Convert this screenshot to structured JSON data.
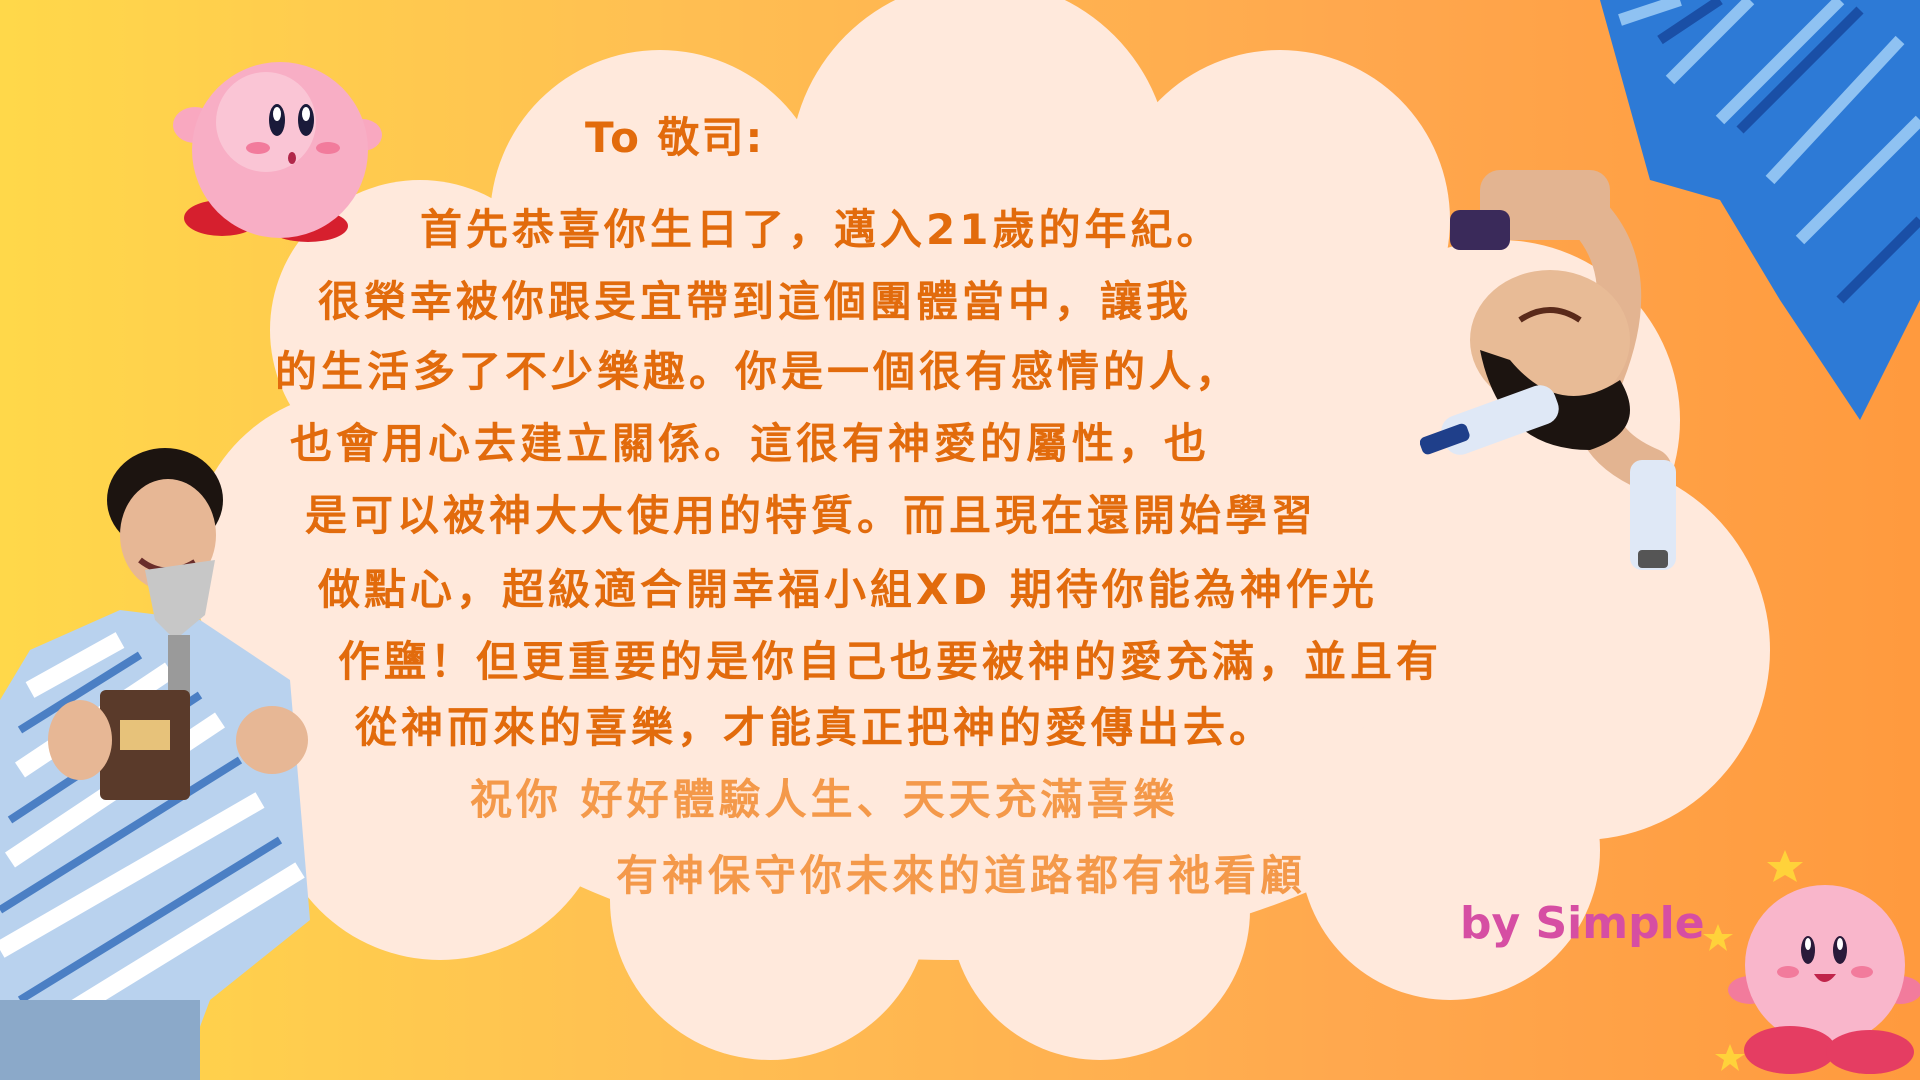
{
  "card": {
    "greeting": "To 敬司:",
    "lines": [
      "首先恭喜你生日了，邁入21歲的年紀。",
      "很榮幸被你跟旻宜帶到這個團體當中，讓我",
      "的生活多了不少樂趣。你是一個很有感情的人，",
      "也會用心去建立關係。這很有神愛的屬性，也",
      "是可以被神大大使用的特質。而且現在還開始學習",
      "做點心，超級適合開幸福小組XD 期待你能為神作光",
      "作鹽！但更重要的是你自己也要被神的愛充滿，並且有",
      "從神而來的喜樂，才能真正把神的愛傳出去。"
    ],
    "wishes": [
      "祝你  好好體驗人生、天天充滿喜樂",
      "有神保守你未來的道路都有祂看顧"
    ],
    "signature": "by Simple"
  },
  "colors": {
    "text_dark": "#e26b0c",
    "text_light": "#f4994a",
    "signature": "#d64ea3",
    "cloud": "#ffe9dc"
  },
  "decorations": [
    "kirby-character",
    "kirby-character-with-stars",
    "person-photo-with-trophy",
    "person-photo-upside-down"
  ]
}
